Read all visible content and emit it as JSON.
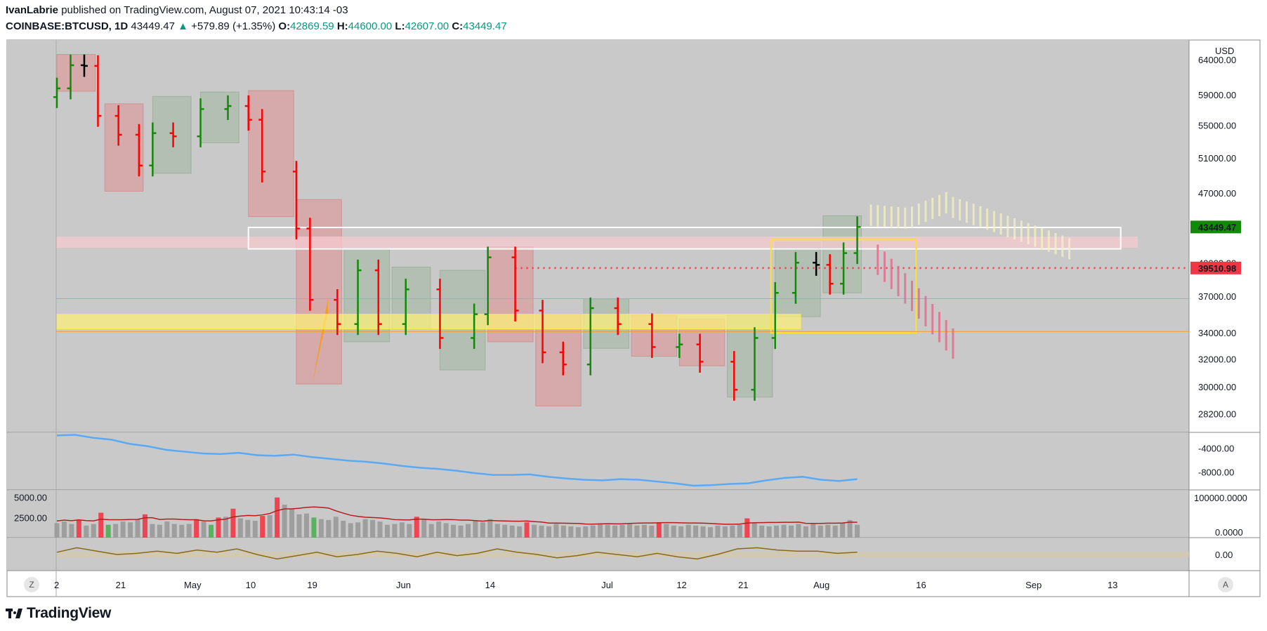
{
  "header": {
    "author": "IvanLabrie",
    "published_text": "published on TradingView.com, August 07, 2021 10:43:14 -03",
    "symbol": "COINBASE:BTCUSD, 1D",
    "last_price": "43449.47",
    "change_arrow": "▲",
    "change": "+579.89 (+1.35%)",
    "o_label": "O:",
    "o_value": "42869.59",
    "h_label": "H:",
    "h_value": "44600.00",
    "l_label": "L:",
    "l_value": "42607.00",
    "c_label": "C:",
    "c_value": "43449.47"
  },
  "brand": {
    "name": "TradingView"
  },
  "buttons": {
    "left": "Z",
    "right": "A"
  },
  "colors": {
    "bull": "#138a07",
    "bear": "#ff0000",
    "neutral": "#000000",
    "bg": "#c9c9c9",
    "price_tag": "#138a07",
    "level_tag": "#f23645",
    "yellow_zone": "#fff176",
    "pink_zone": "#f6c9cf",
    "oscillator": "#5aa9f5",
    "volume_ma": "#b71c1c",
    "rsi_line": "#8b6914"
  },
  "chart_data": [
    {
      "type": "ohlc-bar",
      "title": "COINBASE:BTCUSD, 1D",
      "currency_label": "USD",
      "y_scale": "log",
      "ylim": [
        27000,
        67000
      ],
      "y_ticks": [
        "64000.00",
        "59000.00",
        "55000.00",
        "51000.00",
        "47000.00",
        "43449.47",
        "40000.00",
        "39510.98",
        "37000.00",
        "34000.00",
        "32000.00",
        "30000.00",
        "28200.00"
      ],
      "x_tick_labels": [
        "2",
        "21",
        "May",
        "10",
        "19",
        "Jun",
        "14",
        "Jul",
        "12",
        "21",
        "Aug",
        "16",
        "Sep",
        "13"
      ],
      "x_tick_dates": [
        "2021-04-12",
        "2021-04-21",
        "2021-05-01",
        "2021-05-10",
        "2021-05-19",
        "2021-06-01",
        "2021-06-14",
        "2021-07-01",
        "2021-07-12",
        "2021-07-21",
        "2021-08-01",
        "2021-08-16",
        "2021-09-01",
        "2021-09-13"
      ],
      "price_tags": [
        {
          "value": 43449.47,
          "label": "43449.47",
          "color": "#138a07"
        },
        {
          "value": 39510.98,
          "label": "39510.98",
          "color": "#f23645"
        }
      ],
      "bar_close_estimates": [
        {
          "date": "2021-04-12",
          "close": 59900
        },
        {
          "date": "2021-04-14",
          "close": 63200
        },
        {
          "date": "2021-04-16",
          "close": 63100
        },
        {
          "date": "2021-04-18",
          "close": 56200
        },
        {
          "date": "2021-04-21",
          "close": 53800
        },
        {
          "date": "2021-04-24",
          "close": 50100
        },
        {
          "date": "2021-04-26",
          "close": 54000
        },
        {
          "date": "2021-04-29",
          "close": 53600
        },
        {
          "date": "2021-05-03",
          "close": 57100
        },
        {
          "date": "2021-05-07",
          "close": 57500
        },
        {
          "date": "2021-05-10",
          "close": 55700
        },
        {
          "date": "2021-05-12",
          "close": 49400
        },
        {
          "date": "2021-05-17",
          "close": 43300
        },
        {
          "date": "2021-05-19",
          "close": 36700
        },
        {
          "date": "2021-05-23",
          "close": 34700
        },
        {
          "date": "2021-05-26",
          "close": 39300
        },
        {
          "date": "2021-05-29",
          "close": 34700
        },
        {
          "date": "2021-06-02",
          "close": 37600
        },
        {
          "date": "2021-06-07",
          "close": 33600
        },
        {
          "date": "2021-06-12",
          "close": 35500
        },
        {
          "date": "2021-06-14",
          "close": 40500
        },
        {
          "date": "2021-06-18",
          "close": 35800
        },
        {
          "date": "2021-06-22",
          "close": 32500
        },
        {
          "date": "2021-06-25",
          "close": 31600
        },
        {
          "date": "2021-06-29",
          "close": 36000
        },
        {
          "date": "2021-07-03",
          "close": 34700
        },
        {
          "date": "2021-07-08",
          "close": 32900
        },
        {
          "date": "2021-07-12",
          "close": 33100
        },
        {
          "date": "2021-07-15",
          "close": 31800
        },
        {
          "date": "2021-07-20",
          "close": 29800
        },
        {
          "date": "2021-07-23",
          "close": 33600
        },
        {
          "date": "2021-07-26",
          "close": 37300
        },
        {
          "date": "2021-07-29",
          "close": 40000
        },
        {
          "date": "2021-08-01",
          "close": 39800
        },
        {
          "date": "2021-08-03",
          "close": 38100
        },
        {
          "date": "2021-08-05",
          "close": 40900
        },
        {
          "date": "2021-08-07",
          "close": 43449.47
        }
      ]
    },
    {
      "type": "line",
      "title": "",
      "y_ticks": [
        "-4000.00",
        "-8000.00"
      ],
      "ylim": [
        -11000,
        -1500
      ],
      "series": [
        {
          "name": "",
          "values": [
            -1900,
            -1800,
            -2300,
            -2600,
            -3300,
            -3700,
            -4300,
            -4600,
            -4900,
            -5000,
            -4800,
            -5200,
            -5300,
            -5100,
            -5500,
            -5800,
            -6100,
            -6300,
            -6600,
            -7000,
            -7300,
            -7500,
            -7800,
            -8200,
            -8500,
            -8500,
            -8400,
            -8800,
            -9100,
            -9300,
            -9400,
            -9200,
            -9300,
            -9600,
            -9900,
            -10300,
            -10200,
            -10000,
            -9900,
            -9400,
            -9000,
            -8800,
            -9300,
            -9500,
            -9200
          ]
        }
      ]
    },
    {
      "type": "bar",
      "title": "",
      "y_ticks_left": [
        "5000.00",
        "2500.00"
      ],
      "y_ticks_right": [
        "100000.0000",
        "0.0000"
      ],
      "ylim": [
        0,
        5500
      ],
      "values": [
        1800,
        2000,
        1700,
        2200,
        1500,
        1700,
        3100,
        1600,
        1700,
        2000,
        1900,
        2300,
        2900,
        1700,
        1600,
        2000,
        1700,
        1600,
        1700,
        2300,
        2000,
        1600,
        2500,
        2600,
        3600,
        2400,
        2200,
        2100,
        2700,
        2800,
        5000,
        4100,
        3600,
        2900,
        3000,
        2500,
        2300,
        2200,
        2600,
        2100,
        1800,
        1900,
        2300,
        2200,
        2000,
        1600,
        1700,
        1900,
        1700,
        2600,
        2300,
        1700,
        2000,
        1800,
        1600,
        1500,
        1700,
        2100,
        1900,
        2300,
        1700,
        1600,
        1500,
        1400,
        1900,
        1600,
        1500,
        1400,
        1700,
        1500,
        1400,
        1300,
        1400,
        1500,
        1700,
        1600,
        1500,
        1600,
        1700,
        1500,
        1600,
        1500,
        1900,
        1700,
        1500,
        1400,
        1600,
        1500,
        1400,
        1300,
        1500,
        1400,
        1500,
        1600,
        2400,
        1800,
        1500,
        1400,
        1500,
        1600,
        1500,
        1700,
        1400,
        1700,
        1500,
        1600,
        1500,
        1800,
        2200,
        1600
      ],
      "ma_name": ""
    },
    {
      "type": "line",
      "title": "",
      "y_ticks": [
        "0.00"
      ],
      "ylim": [
        -1,
        1
      ],
      "series": [
        {
          "name": "",
          "values": [
            0.2,
            0.6,
            0.3,
            0.0,
            0.1,
            0.3,
            0.1,
            0.4,
            0.2,
            0.5,
            0.0,
            -0.4,
            -0.1,
            0.2,
            -0.2,
            0.0,
            0.3,
            0.1,
            -0.2,
            0.2,
            -0.1,
            0.1,
            0.5,
            0.2,
            0.0,
            -0.3,
            -0.1,
            0.2,
            0.0,
            -0.2,
            0.1,
            -0.2,
            -0.4,
            0.0,
            0.5,
            0.6,
            0.4,
            0.3,
            0.3,
            0.1,
            0.2
          ]
        }
      ]
    }
  ]
}
